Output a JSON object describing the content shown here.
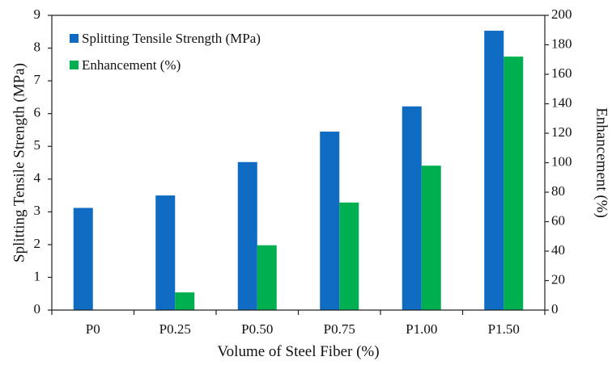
{
  "chart_data": {
    "type": "bar",
    "categories": [
      "P0",
      "P0.25",
      "P0.50",
      "P0.75",
      "P1.00",
      "P1.50"
    ],
    "series": [
      {
        "name": "Splitting Tensile Strength (MPa)",
        "axis": "left",
        "color": "#0F6CC2",
        "values": [
          3.12,
          3.5,
          4.52,
          5.45,
          6.22,
          8.53
        ]
      },
      {
        "name": "Enhancement (%)",
        "axis": "right",
        "color": "#00B050",
        "values": [
          0,
          12,
          44,
          73,
          98,
          172
        ]
      }
    ],
    "xlabel": "Volume of Steel Fiber (%)",
    "ylabel": "Splitting Tensile Strength (MPa)",
    "y2label": "Enhancement (%)",
    "ylim": [
      0,
      9
    ],
    "y2lim": [
      0,
      200
    ],
    "yticks": [
      "0",
      "1",
      "2",
      "3",
      "4",
      "5",
      "6",
      "7",
      "8",
      "9"
    ],
    "y2ticks": [
      "0",
      "20",
      "40",
      "60",
      "80",
      "100",
      "120",
      "140",
      "160",
      "180",
      "200"
    ],
    "grid": false,
    "legend": "top-left"
  }
}
